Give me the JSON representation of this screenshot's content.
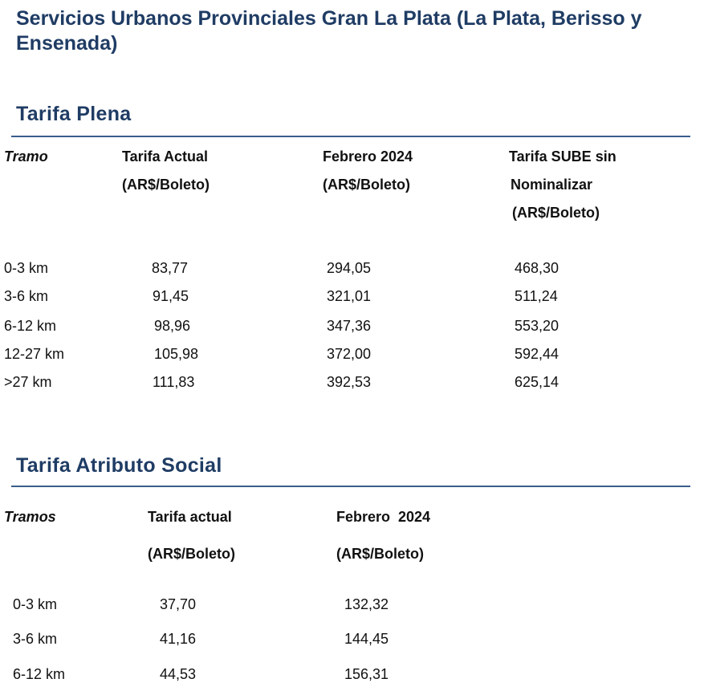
{
  "title": "Servicios Urbanos Provinciales Gran La Plata (La Plata, Berisso y Ensenada)",
  "tarifa_plena": {
    "heading": "Tarifa Plena",
    "headers": {
      "tramo": "Tramo",
      "actual_l1": "Tarifa Actual",
      "actual_l2": "(AR$/Boleto)",
      "feb_l1": "Febrero 2024",
      "feb_l2": "(AR$/Boleto)",
      "sube_l1": "Tarifa SUBE sin",
      "sube_l2": "Nominalizar",
      "sube_l3": "(AR$/Boleto)"
    },
    "rows": [
      {
        "tramo": "0-3 km",
        "actual": "83,77",
        "feb": "294,05",
        "sube": "468,30"
      },
      {
        "tramo": "3-6 km",
        "actual": "91,45",
        "feb": "321,01",
        "sube": "511,24"
      },
      {
        "tramo": "6-12 km",
        "actual": "98,96",
        "feb": "347,36",
        "sube": "553,20"
      },
      {
        "tramo": "12-27 km",
        "actual": "105,98",
        "feb": "372,00",
        "sube": "592,44"
      },
      {
        "tramo": ">27 km",
        "actual": "111,83",
        "feb": "392,53",
        "sube": "625,14"
      }
    ]
  },
  "tarifa_social": {
    "heading": "Tarifa Atributo Social",
    "headers": {
      "tramo": "Tramos",
      "actual_l1": "Tarifa actual",
      "actual_l2": "(AR$/Boleto)",
      "feb_l1": "Febrero  2024",
      "feb_l2": "(AR$/Boleto)"
    },
    "rows": [
      {
        "tramo": "0-3 km",
        "actual": "37,70",
        "feb": "132,32"
      },
      {
        "tramo": "3-6 km",
        "actual": "41,16",
        "feb": "144,45"
      },
      {
        "tramo": "6-12 km",
        "actual": "44,53",
        "feb": "156,31"
      }
    ]
  }
}
